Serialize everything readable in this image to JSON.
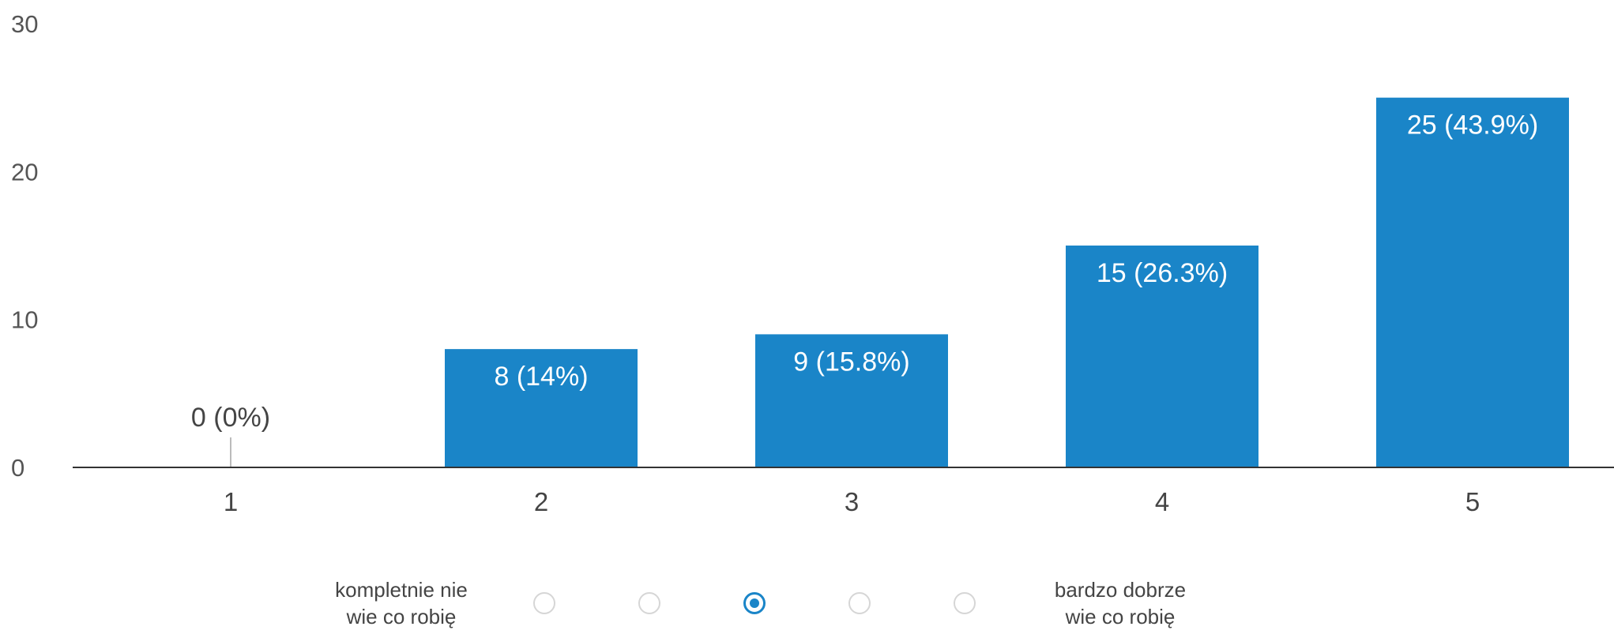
{
  "chart_data": {
    "type": "bar",
    "categories": [
      "1",
      "2",
      "3",
      "4",
      "5"
    ],
    "values": [
      0,
      8,
      9,
      15,
      25
    ],
    "data_labels": [
      "0 (0%)",
      "8 (14%)",
      "9 (15.8%)",
      "15 (26.3%)",
      "25 (43.9%)"
    ],
    "y_ticks": [
      "0",
      "10",
      "20",
      "30"
    ],
    "ylim": [
      0,
      30
    ],
    "grid": false,
    "legend": "none",
    "colors": {
      "bar": "#1a85c8",
      "axis": "#333333",
      "label_inside": "#ffffff",
      "label_outside": "#444444"
    }
  },
  "scale": {
    "left_label": "kompletnie nie\nwie co robię",
    "right_label": "bardzo dobrze\nwie co robię",
    "options": [
      "1",
      "2",
      "3",
      "4",
      "5"
    ],
    "selected": "3",
    "accent": "#1a85c8"
  }
}
